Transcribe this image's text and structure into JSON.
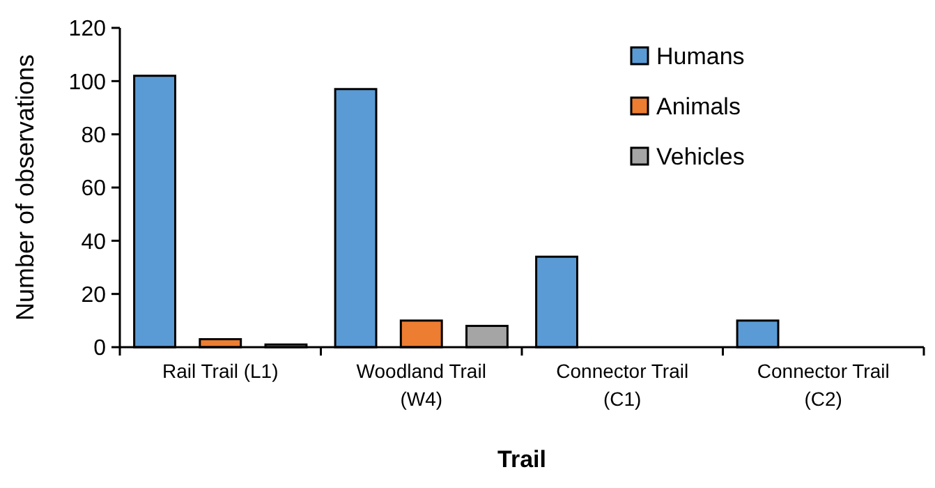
{
  "chart_data": {
    "type": "bar",
    "xlabel": "Trail",
    "ylabel": "Number of observations",
    "categories": [
      "Rail Trail (L1)",
      "Woodland Trail (W4)",
      "Connector Trail (C1)",
      "Connector Trail (C2)"
    ],
    "series": [
      {
        "name": "Humans",
        "color": "#5b9bd5",
        "values": [
          102,
          97,
          34,
          10
        ]
      },
      {
        "name": "Animals",
        "color": "#ed7d31",
        "values": [
          3,
          10,
          0,
          0
        ]
      },
      {
        "name": "Vehicles",
        "color": "#a5a5a5",
        "values": [
          1,
          8,
          0,
          0
        ]
      }
    ],
    "ylim": [
      0,
      120
    ],
    "yticks": [
      0,
      20,
      40,
      60,
      80,
      100,
      120
    ],
    "grid": false,
    "legend": "top right"
  }
}
